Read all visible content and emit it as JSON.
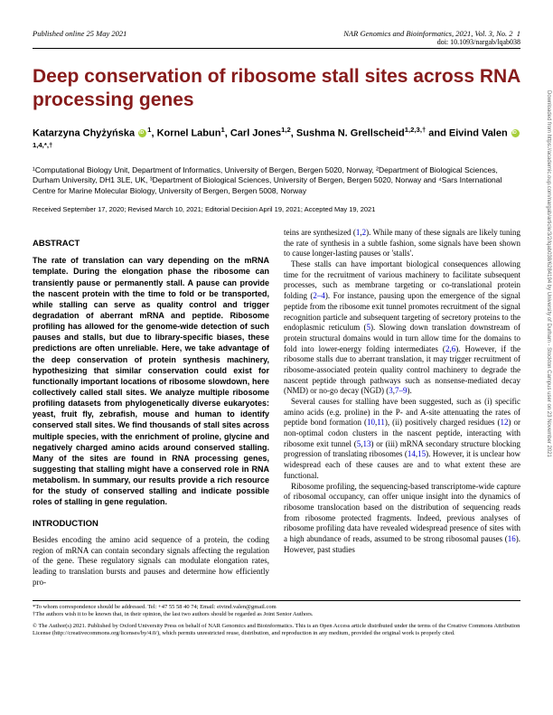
{
  "header": {
    "published": "Published online 25 May 2021",
    "journal": "NAR Genomics and Bioinformatics, 2021, Vol. 3, No. 2",
    "pagenum": "1",
    "doi": "doi: 10.1093/nargab/lqab038"
  },
  "title": "Deep conservation of ribosome stall sites across RNA processing genes",
  "authors_html": "Katarzyna Chyżyńska <span class='orcid' data-name='orcid-icon' data-interactable='false'></span><sup>1</sup>, Kornel Labun<sup>1</sup>, Carl Jones<sup>1,2</sup>, Sushma N. Grellscheid<sup>1,2,3,†</sup> and Eivind Valen <span class='orcid' data-name='orcid-icon' data-interactable='false'></span><sup>1,4,*,†</sup>",
  "affiliations": "¹Computational Biology Unit, Department of Informatics, University of Bergen, Bergen 5020, Norway, ²Department of Biological Sciences, Durham University, DH1 3LE, UK, ³Department of Biological Sciences, University of Bergen, Bergen 5020, Norway and ⁴Sars International Centre for Marine Molecular Biology, University of Bergen, Bergen 5008, Norway",
  "dates": "Received September 17, 2020; Revised March 10, 2021; Editorial Decision April 19, 2021; Accepted May 19, 2021",
  "abstract_heading": "ABSTRACT",
  "abstract": "The rate of translation can vary depending on the mRNA template. During the elongation phase the ribosome can transiently pause or permanently stall. A pause can provide the nascent protein with the time to fold or be transported, while stalling can serve as quality control and trigger degradation of aberrant mRNA and peptide. Ribosome profiling has allowed for the genome-wide detection of such pauses and stalls, but due to library-specific biases, these predictions are often unreliable. Here, we take advantage of the deep conservation of protein synthesis machinery, hypothesizing that similar conservation could exist for functionally important locations of ribosome slowdown, here collectively called stall sites. We analyze multiple ribosome profiling datasets from phylogenetically diverse eukaryotes: yeast, fruit fly, zebrafish, mouse and human to identify conserved stall sites. We find thousands of stall sites across multiple species, with the enrichment of proline, glycine and negatively charged amino acids around conserved stalling. Many of the sites are found in RNA processing genes, suggesting that stalling might have a conserved role in RNA metabolism. In summary, our results provide a rich resource for the study of conserved stalling and indicate possible roles of stalling in gene regulation.",
  "intro_heading": "INTRODUCTION",
  "intro_p1": "Besides encoding the amino acid sequence of a protein, the coding region of mRNA can contain secondary signals affecting the regulation of the gene. These regulatory signals can modulate elongation rates, leading to translation bursts and pauses and determine how efficiently pro-",
  "col2_p1_html": "teins are synthesized (<span class='ref'>1</span>,<span class='ref'>2</span>). While many of these signals are likely tuning the rate of synthesis in a subtle fashion, some signals have been shown to cause longer-lasting pauses or 'stalls'.",
  "col2_p2_html": "These stalls can have important biological consequences allowing time for the recruitment of various machinery to facilitate subsequent processes, such as membrane targeting or co-translational protein folding (<span class='ref'>2–4</span>). For instance, pausing upon the emergence of the signal peptide from the ribosome exit tunnel promotes recruitment of the signal recognition particle and subsequent targeting of secretory proteins to the endoplasmic reticulum (<span class='ref'>5</span>). Slowing down translation downstream of protein structural domains would in turn allow time for the domains to fold into lower-energy folding intermediates (<span class='ref'>2</span>,<span class='ref'>6</span>). However, if the ribosome stalls due to aberrant translation, it may trigger recruitment of ribosome-associated protein quality control machinery to degrade the nascent peptide through pathways such as nonsense-mediated decay (NMD) or no-go decay (NGD) (<span class='ref'>3</span>,<span class='ref'>7–9</span>).",
  "col2_p3_html": "Several causes for stalling have been suggested, such as (i) specific amino acids (e.g. proline) in the P- and A-site attenuating the rates of peptide bond formation (<span class='ref'>10</span>,<span class='ref'>11</span>), (ii) positively charged residues (<span class='ref'>12</span>) or non-optimal codon clusters in the nascent peptide, interacting with ribosome exit tunnel (<span class='ref'>5</span>,<span class='ref'>13</span>) or (iii) mRNA secondary structure blocking progression of translating ribosomes (<span class='ref'>14</span>,<span class='ref'>15</span>). However, it is unclear how widespread each of these causes are and to what extent these are functional.",
  "col2_p4_html": "Ribosome profiling, the sequencing-based transcriptome-wide capture of ribosomal occupancy, can offer unique insight into the dynamics of ribosome translocation based on the distribution of sequencing reads from ribosome protected fragments. Indeed, previous analyses of ribosome profiling data have revealed widespread presence of sites with a high abundance of reads, assumed to be strong ribosomal pauses (<span class='ref'>16</span>). However, past studies",
  "footnote1": "*To whom correspondence should be addressed. Tel: +47 55 58 40 74; Email: eivind.valen@gmail.com",
  "footnote2": "†The authors wish it to be known that, in their opinion, the last two authors should be regarded as Joint Senior Authors.",
  "license": "© The Author(s) 2021. Published by Oxford University Press on behalf of NAR Genomics and Bioinformatics.\nThis is an Open Access article distributed under the terms of the Creative Commons Attribution License (http://creativecommons.org/licenses/by/4.0/), which permits unrestricted reuse, distribution, and reproduction in any medium, provided the original work is properly cited.",
  "side_text": "Downloaded from https://academic.oup.com/nargab/article/3/2/lqab038/6284194 by University of Durham - Stockton Campus user on 23 November 2021"
}
